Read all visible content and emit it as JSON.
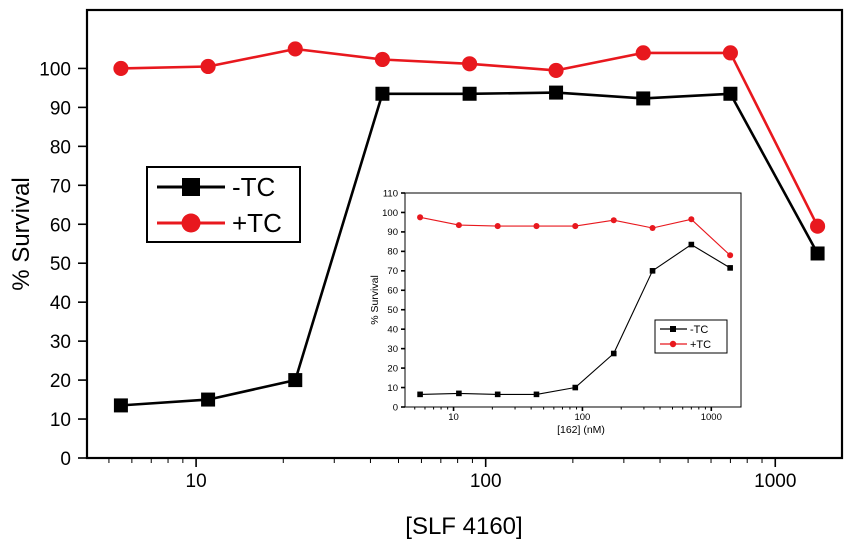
{
  "chart_data": [
    {
      "id": "main",
      "type": "line",
      "title": "",
      "xlabel": "[SLF 4160]",
      "ylabel": "% Survival",
      "xscale": "log",
      "xlim": [
        4.2,
        1700
      ],
      "ylim": [
        0,
        115
      ],
      "xticks": [
        10,
        100,
        1000
      ],
      "xtick_labels": [
        "10",
        "100",
        "1000"
      ],
      "yticks": [
        0,
        10,
        20,
        30,
        40,
        50,
        60,
        70,
        80,
        90,
        100
      ],
      "ytick_labels": [
        "0",
        "10",
        "20",
        "30",
        "40",
        "50",
        "60",
        "70",
        "80",
        "90",
        "100"
      ],
      "grid": false,
      "legend_position": "middle-left",
      "series": [
        {
          "name": "-TC",
          "color": "#000000",
          "marker": "square",
          "x": [
            5.5,
            11,
            22,
            44,
            88,
            175,
            350,
            700,
            1400
          ],
          "y": [
            13.5,
            15,
            20,
            93.5,
            93.5,
            93.8,
            92.3,
            93.5,
            52.5
          ]
        },
        {
          "name": "+TC",
          "color": "#e8181e",
          "marker": "circle",
          "x": [
            5.5,
            11,
            22,
            44,
            88,
            175,
            350,
            700,
            1400
          ],
          "y": [
            100,
            100.5,
            105,
            102.3,
            101.2,
            99.5,
            104,
            104,
            59.5
          ]
        }
      ]
    },
    {
      "id": "inset",
      "type": "line",
      "title": "",
      "xlabel": "[162] (nM)",
      "ylabel": "% Survival",
      "xscale": "log",
      "xlim": [
        4.2,
        1700
      ],
      "ylim": [
        0,
        110
      ],
      "xticks": [
        10,
        100,
        1000
      ],
      "xtick_labels": [
        "10",
        "100",
        "1000"
      ],
      "yticks": [
        0,
        10,
        20,
        30,
        40,
        50,
        60,
        70,
        80,
        90,
        100,
        110
      ],
      "ytick_labels": [
        "0",
        "10",
        "20",
        "30",
        "40",
        "50",
        "60",
        "70",
        "80",
        "90",
        "100",
        "110"
      ],
      "grid": false,
      "legend_position": "lower-right",
      "series": [
        {
          "name": "-TC",
          "color": "#000000",
          "marker": "square",
          "x": [
            5.5,
            11,
            22,
            44,
            88,
            175,
            350,
            700,
            1400
          ],
          "y": [
            6.5,
            7,
            6.5,
            6.5,
            10,
            27.5,
            70,
            83.5,
            71.5
          ]
        },
        {
          "name": "+TC",
          "color": "#e8181e",
          "marker": "circle",
          "x": [
            5.5,
            11,
            22,
            44,
            88,
            175,
            350,
            700,
            1400
          ],
          "y": [
            97.5,
            93.5,
            93,
            93,
            93,
            96,
            92,
            96.5,
            78
          ]
        }
      ]
    }
  ]
}
